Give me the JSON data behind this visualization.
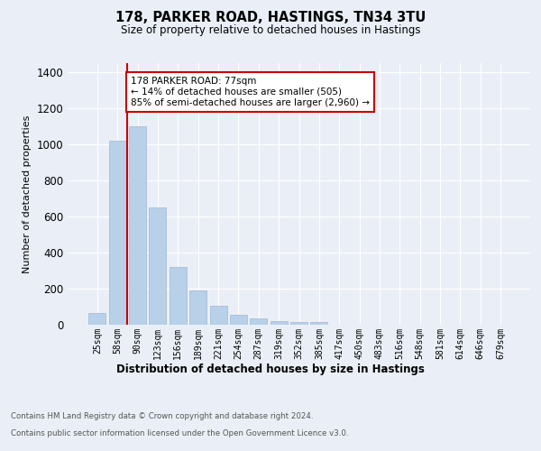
{
  "title_line1": "178, PARKER ROAD, HASTINGS, TN34 3TU",
  "title_line2": "Size of property relative to detached houses in Hastings",
  "xlabel": "Distribution of detached houses by size in Hastings",
  "ylabel": "Number of detached properties",
  "categories": [
    "25sqm",
    "58sqm",
    "90sqm",
    "123sqm",
    "156sqm",
    "189sqm",
    "221sqm",
    "254sqm",
    "287sqm",
    "319sqm",
    "352sqm",
    "385sqm",
    "417sqm",
    "450sqm",
    "483sqm",
    "516sqm",
    "548sqm",
    "581sqm",
    "614sqm",
    "646sqm",
    "679sqm"
  ],
  "values": [
    65,
    1020,
    1100,
    650,
    320,
    190,
    105,
    55,
    35,
    20,
    15,
    15,
    0,
    0,
    0,
    0,
    0,
    0,
    0,
    0,
    0
  ],
  "bar_color": "#b8d0e8",
  "bar_edgecolor": "#a0b8d0",
  "vline_index": 1.5,
  "vline_color": "#cc0000",
  "annotation_text": "178 PARKER ROAD: 77sqm\n← 14% of detached houses are smaller (505)\n85% of semi-detached houses are larger (2,960) →",
  "annotation_box_color": "#ffffff",
  "annotation_box_edgecolor": "#cc0000",
  "ylim": [
    0,
    1450
  ],
  "yticks": [
    0,
    200,
    400,
    600,
    800,
    1000,
    1200,
    1400
  ],
  "background_color": "#eaeff7",
  "plot_background_color": "#eaeff7",
  "grid_color": "#ffffff",
  "footer_line1": "Contains HM Land Registry data © Crown copyright and database right 2024.",
  "footer_line2": "Contains public sector information licensed under the Open Government Licence v3.0."
}
